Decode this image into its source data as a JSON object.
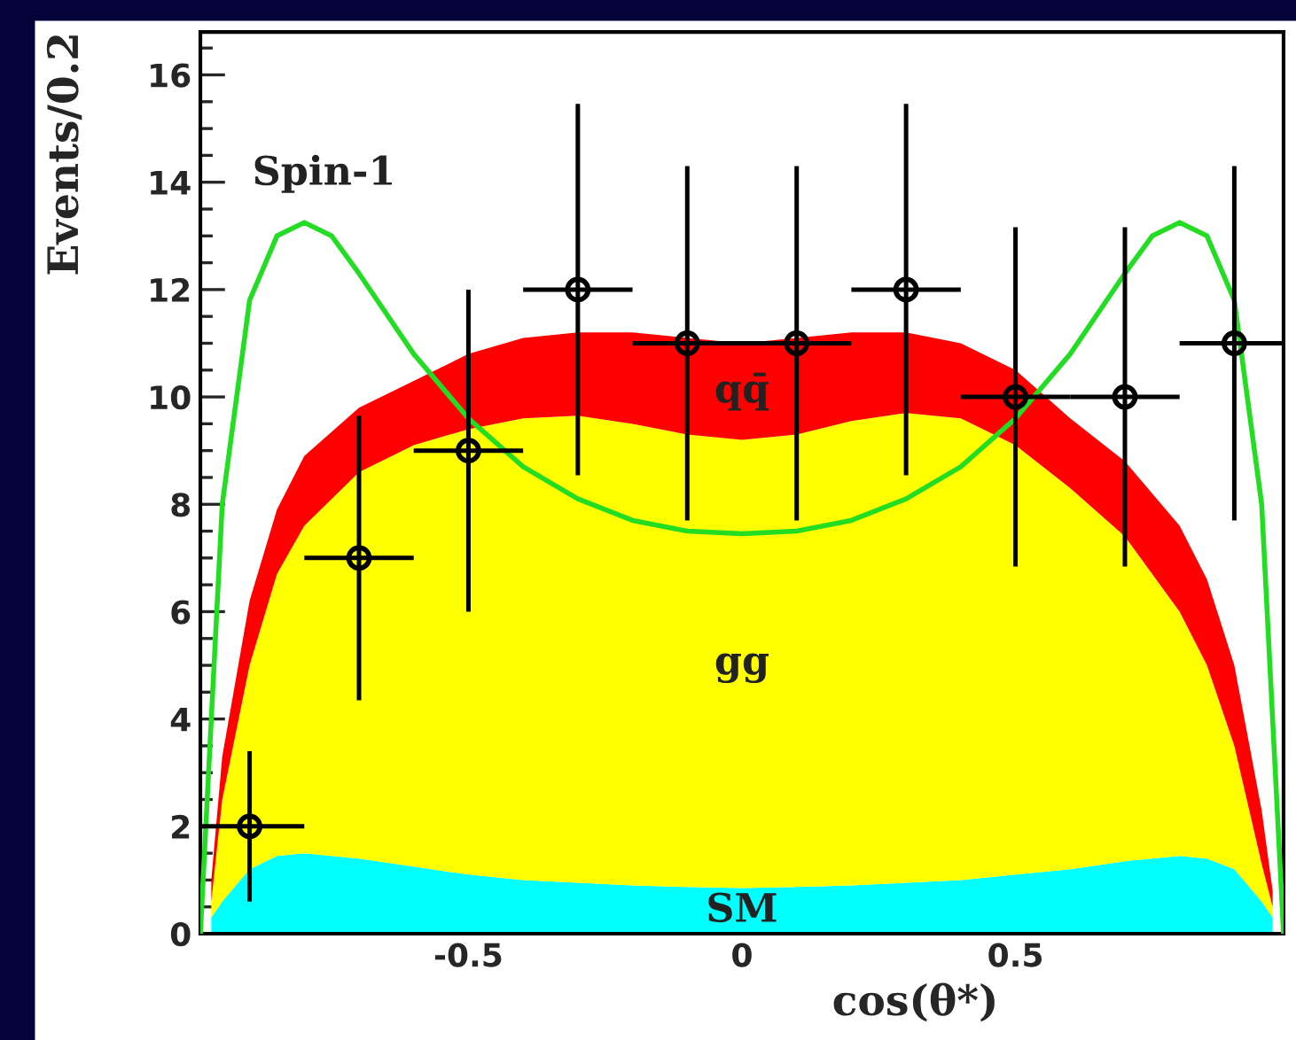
{
  "chart_data": {
    "type": "area",
    "stacked": true,
    "xlabel": "cos(θ*)",
    "ylabel": "Events/0.2",
    "xlim": [
      -0.99,
      0.99
    ],
    "ylim": [
      0,
      16.8
    ],
    "xticks": [
      -0.5,
      0,
      0.5
    ],
    "yticks": [
      0,
      2,
      4,
      6,
      8,
      10,
      12,
      14,
      16
    ],
    "grid": false,
    "legend": false,
    "series": [
      {
        "name": "SM",
        "color": "#00ffff",
        "x": [
          -0.97,
          -0.95,
          -0.9,
          -0.85,
          -0.8,
          -0.7,
          -0.6,
          -0.5,
          -0.4,
          -0.3,
          -0.2,
          -0.1,
          0,
          0.1,
          0.2,
          0.3,
          0.4,
          0.5,
          0.6,
          0.7,
          0.8,
          0.85,
          0.9,
          0.95,
          0.97
        ],
        "values": [
          0.3,
          0.6,
          1.2,
          1.45,
          1.5,
          1.4,
          1.25,
          1.1,
          1.0,
          0.95,
          0.9,
          0.87,
          0.85,
          0.87,
          0.9,
          0.95,
          1.0,
          1.1,
          1.2,
          1.35,
          1.45,
          1.4,
          1.2,
          0.6,
          0.3
        ]
      },
      {
        "name": "gg",
        "color": "#ffff00",
        "x": [
          -0.97,
          -0.95,
          -0.9,
          -0.85,
          -0.8,
          -0.7,
          -0.6,
          -0.5,
          -0.4,
          -0.3,
          -0.2,
          -0.1,
          0,
          0.1,
          0.2,
          0.3,
          0.4,
          0.5,
          0.6,
          0.7,
          0.8,
          0.85,
          0.9,
          0.95,
          0.97
        ],
        "values": [
          0.3,
          1.9,
          3.8,
          5.25,
          6.1,
          7.2,
          7.85,
          8.3,
          8.6,
          8.7,
          8.6,
          8.43,
          8.35,
          8.43,
          8.65,
          8.75,
          8.6,
          8.0,
          7.1,
          6.05,
          4.55,
          3.6,
          2.3,
          0.7,
          0.2
        ]
      },
      {
        "name": "qq̄",
        "color": "#ff0000",
        "x": [
          -0.97,
          -0.95,
          -0.9,
          -0.85,
          -0.8,
          -0.7,
          -0.6,
          -0.5,
          -0.4,
          -0.3,
          -0.2,
          -0.1,
          0,
          0.1,
          0.2,
          0.3,
          0.4,
          0.5,
          0.6,
          0.7,
          0.8,
          0.85,
          0.9,
          0.95,
          0.97
        ],
        "values": [
          0.4,
          0.8,
          1.2,
          1.2,
          1.3,
          1.2,
          1.2,
          1.4,
          1.5,
          1.55,
          1.7,
          1.8,
          1.8,
          1.8,
          1.65,
          1.5,
          1.4,
          1.4,
          1.3,
          1.4,
          1.6,
          1.6,
          1.5,
          1.0,
          0.3
        ]
      },
      {
        "name": "Spin-1",
        "type": "line",
        "color": "#22dd22",
        "line_style": "solid",
        "marker": "none",
        "x": [
          -0.99,
          -0.97,
          -0.95,
          -0.9,
          -0.85,
          -0.8,
          -0.75,
          -0.7,
          -0.6,
          -0.5,
          -0.4,
          -0.3,
          -0.2,
          -0.1,
          0,
          0.1,
          0.2,
          0.3,
          0.4,
          0.5,
          0.6,
          0.7,
          0.75,
          0.8,
          0.85,
          0.9,
          0.95,
          0.97,
          0.99
        ],
        "values": [
          0,
          4,
          8,
          11.8,
          13.0,
          13.25,
          13.0,
          12.3,
          10.8,
          9.6,
          8.7,
          8.1,
          7.7,
          7.5,
          7.45,
          7.5,
          7.7,
          8.1,
          8.7,
          9.6,
          10.8,
          12.3,
          13.0,
          13.25,
          13.0,
          11.8,
          8,
          4,
          0
        ]
      },
      {
        "type": "scatter",
        "color": "#000000",
        "marker": "circle",
        "x": [
          -0.9,
          -0.7,
          -0.5,
          -0.3,
          -0.1,
          0.1,
          0.3,
          0.5,
          0.7,
          0.9
        ],
        "values": [
          2,
          7,
          9,
          12,
          11,
          11,
          12,
          10,
          10,
          11
        ],
        "errors": [
          1.4,
          2.65,
          3,
          3.46,
          3.3,
          3.3,
          3.46,
          3.16,
          3.16,
          3.3
        ],
        "xerrors": [
          0.1,
          0.1,
          0.1,
          0.1,
          0.1,
          0.1,
          0.1,
          0.1,
          0.1,
          0.1
        ]
      }
    ]
  }
}
